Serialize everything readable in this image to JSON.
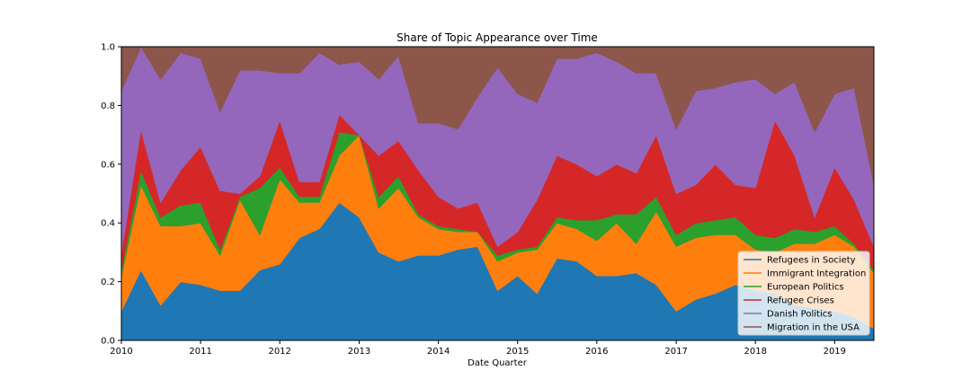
{
  "chart_data": {
    "type": "area",
    "stacked": true,
    "title": "Share of Topic Appearance over Time",
    "xlabel": "Date Quarter",
    "ylabel": "",
    "xlim": [
      "2010-01-01",
      "2019-07-01"
    ],
    "ylim": [
      0.0,
      1.0
    ],
    "x_ticks": [
      "2010",
      "2011",
      "2012",
      "2013",
      "2014",
      "2015",
      "2016",
      "2017",
      "2018",
      "2019"
    ],
    "y_ticks": [
      "0.0",
      "0.2",
      "0.4",
      "0.6",
      "0.8",
      "1.0"
    ],
    "grid": false,
    "legend_position": "bottom-right",
    "x": [
      "2010-01-01",
      "2010-04-01",
      "2010-07-01",
      "2010-10-01",
      "2011-01-01",
      "2011-04-01",
      "2011-07-01",
      "2011-10-01",
      "2012-01-01",
      "2012-04-01",
      "2012-07-01",
      "2012-10-01",
      "2013-01-01",
      "2013-04-01",
      "2013-07-01",
      "2013-10-01",
      "2014-01-01",
      "2014-04-01",
      "2014-07-01",
      "2014-10-01",
      "2015-01-01",
      "2015-04-01",
      "2015-07-01",
      "2015-10-01",
      "2016-01-01",
      "2016-04-01",
      "2016-07-01",
      "2016-10-01",
      "2017-01-01",
      "2017-04-01",
      "2017-07-01",
      "2017-10-01",
      "2018-01-01",
      "2018-04-01",
      "2018-07-01",
      "2018-10-01",
      "2019-01-01",
      "2019-04-01",
      "2019-07-01"
    ],
    "series": [
      {
        "name": "Refugees in Society",
        "color": "#1f77b4",
        "values": [
          0.1,
          0.24,
          0.12,
          0.2,
          0.19,
          0.17,
          0.17,
          0.24,
          0.26,
          0.35,
          0.38,
          0.47,
          0.42,
          0.3,
          0.27,
          0.29,
          0.29,
          0.31,
          0.32,
          0.17,
          0.22,
          0.16,
          0.28,
          0.27,
          0.22,
          0.22,
          0.23,
          0.19,
          0.1,
          0.14,
          0.16,
          0.19,
          0.17,
          0.16,
          0.12,
          0.11,
          0.1,
          0.08,
          0.04
        ]
      },
      {
        "name": "Immigrant Integration",
        "color": "#ff7f0e",
        "values": [
          0.12,
          0.29,
          0.27,
          0.19,
          0.21,
          0.12,
          0.31,
          0.12,
          0.29,
          0.12,
          0.09,
          0.16,
          0.28,
          0.15,
          0.25,
          0.13,
          0.09,
          0.06,
          0.05,
          0.1,
          0.08,
          0.15,
          0.12,
          0.11,
          0.12,
          0.18,
          0.1,
          0.25,
          0.22,
          0.21,
          0.2,
          0.17,
          0.14,
          0.14,
          0.21,
          0.22,
          0.26,
          0.24,
          0.19
        ]
      },
      {
        "name": "European Politics",
        "color": "#2ca02c",
        "values": [
          0.02,
          0.05,
          0.03,
          0.07,
          0.07,
          0.02,
          0.01,
          0.16,
          0.04,
          0.02,
          0.02,
          0.08,
          0.0,
          0.04,
          0.04,
          0.01,
          0.01,
          0.01,
          0.0,
          0.02,
          0.01,
          0.01,
          0.02,
          0.03,
          0.07,
          0.03,
          0.1,
          0.05,
          0.04,
          0.05,
          0.05,
          0.06,
          0.05,
          0.05,
          0.05,
          0.04,
          0.03,
          0.01,
          0.01
        ]
      },
      {
        "name": "Refugee Crises",
        "color": "#d62728",
        "values": [
          0.06,
          0.14,
          0.05,
          0.12,
          0.19,
          0.2,
          0.01,
          0.04,
          0.16,
          0.05,
          0.05,
          0.06,
          0.0,
          0.14,
          0.12,
          0.15,
          0.1,
          0.07,
          0.1,
          0.03,
          0.06,
          0.16,
          0.21,
          0.19,
          0.15,
          0.17,
          0.14,
          0.21,
          0.14,
          0.13,
          0.19,
          0.11,
          0.16,
          0.4,
          0.25,
          0.05,
          0.2,
          0.15,
          0.08
        ]
      },
      {
        "name": "Danish Politics",
        "color": "#9467bd",
        "values": [
          0.55,
          0.28,
          0.42,
          0.4,
          0.3,
          0.27,
          0.42,
          0.36,
          0.16,
          0.37,
          0.44,
          0.17,
          0.25,
          0.26,
          0.29,
          0.16,
          0.25,
          0.27,
          0.36,
          0.61,
          0.47,
          0.33,
          0.33,
          0.36,
          0.42,
          0.35,
          0.34,
          0.21,
          0.22,
          0.32,
          0.26,
          0.35,
          0.37,
          0.09,
          0.25,
          0.29,
          0.25,
          0.38,
          0.21
        ]
      },
      {
        "name": "Migration in the USA",
        "color": "#8c564b",
        "values": [
          0.15,
          0.0,
          0.11,
          0.02,
          0.04,
          0.22,
          0.08,
          0.08,
          0.09,
          0.09,
          0.02,
          0.06,
          0.05,
          0.11,
          0.03,
          0.26,
          0.26,
          0.28,
          0.17,
          0.07,
          0.16,
          0.19,
          0.04,
          0.04,
          0.02,
          0.05,
          0.09,
          0.09,
          0.28,
          0.15,
          0.14,
          0.12,
          0.11,
          0.16,
          0.12,
          0.29,
          0.16,
          0.14,
          0.47
        ]
      }
    ]
  }
}
